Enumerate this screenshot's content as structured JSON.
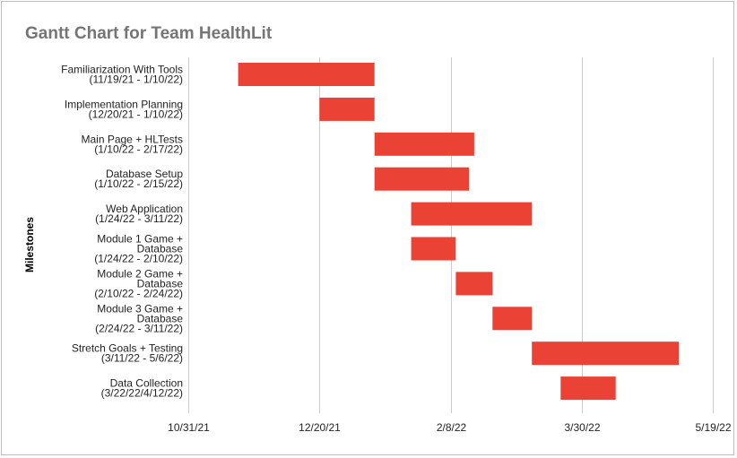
{
  "chart_data": {
    "type": "gantt",
    "title": "Gantt Chart for Team HealthLit",
    "ylabel": "Milestones",
    "xlabel": "",
    "bar_color": "#ea4335",
    "grid": true,
    "xlim": [
      "2021-10-31",
      "2022-05-19"
    ],
    "x_ticks": [
      {
        "date": "2021-10-31",
        "label": "10/31/21"
      },
      {
        "date": "2021-12-20",
        "label": "12/20/21"
      },
      {
        "date": "2022-02-08",
        "label": "2/8/22"
      },
      {
        "date": "2022-03-30",
        "label": "3/30/22"
      },
      {
        "date": "2022-05-19",
        "label": "5/19/22"
      }
    ],
    "tasks": [
      {
        "label_lines": [
          "Familiarization With Tools",
          "(11/19/21 - 1/10/22)"
        ],
        "start": "2021-11-19",
        "end": "2022-01-10"
      },
      {
        "label_lines": [
          "Implementation Planning",
          "(12/20/21 - 1/10/22)"
        ],
        "start": "2021-12-20",
        "end": "2022-01-10"
      },
      {
        "label_lines": [
          "Main Page + HLTests",
          "(1/10/22 - 2/17/22)"
        ],
        "start": "2022-01-10",
        "end": "2022-02-17"
      },
      {
        "label_lines": [
          "Database Setup",
          "(1/10/22 - 2/15/22)"
        ],
        "start": "2022-01-10",
        "end": "2022-02-15"
      },
      {
        "label_lines": [
          "Web Application",
          "(1/24/22 - 3/11/22)"
        ],
        "start": "2022-01-24",
        "end": "2022-03-11"
      },
      {
        "label_lines": [
          "Module 1 Game +",
          "Database",
          "(1/24/22 - 2/10/22)"
        ],
        "start": "2022-01-24",
        "end": "2022-02-10"
      },
      {
        "label_lines": [
          "Module 2 Game +",
          "Database",
          "(2/10/22 - 2/24/22)"
        ],
        "start": "2022-02-10",
        "end": "2022-02-24"
      },
      {
        "label_lines": [
          "Module 3 Game +",
          "Database",
          "(2/24/22 - 3/11/22)"
        ],
        "start": "2022-02-24",
        "end": "2022-03-11"
      },
      {
        "label_lines": [
          "Stretch Goals + Testing",
          "(3/11/22 - 5/6/22)"
        ],
        "start": "2022-03-11",
        "end": "2022-05-06"
      },
      {
        "label_lines": [
          "Data Collection",
          "(3/22/22/4/12/22)"
        ],
        "start": "2022-03-22",
        "end": "2022-04-12"
      }
    ]
  }
}
